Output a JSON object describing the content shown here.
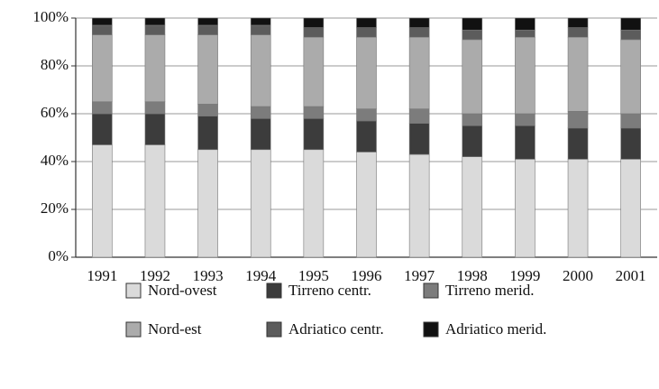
{
  "chart_data": {
    "type": "stacked_bar",
    "categories": [
      "1991",
      "1992",
      "1993",
      "1994",
      "1995",
      "1996",
      "1997",
      "1998",
      "1999",
      "2000",
      "2001"
    ],
    "series": [
      {
        "name": "Nord-ovest",
        "color": "#dadada",
        "values": [
          47,
          47,
          45,
          45,
          45,
          44,
          43,
          42,
          41,
          41,
          41
        ]
      },
      {
        "name": "Tirreno centr.",
        "color": "#3c3c3c",
        "values": [
          13,
          13,
          14,
          13,
          13,
          13,
          13,
          13,
          14,
          13,
          13
        ]
      },
      {
        "name": "Tirreno merid.",
        "color": "#7c7c7c",
        "values": [
          5,
          5,
          5,
          5,
          5,
          5,
          6,
          5,
          5,
          7,
          6
        ]
      },
      {
        "name": "Nord-est",
        "color": "#ababab",
        "values": [
          28,
          28,
          29,
          30,
          29,
          30,
          30,
          31,
          32,
          31,
          31
        ]
      },
      {
        "name": "Adriatico centr.",
        "color": "#5c5c5c",
        "values": [
          4,
          4,
          4,
          4,
          4,
          4,
          4,
          4,
          3,
          4,
          4
        ]
      },
      {
        "name": "Adriatico merid.",
        "color": "#111111",
        "values": [
          3,
          3,
          3,
          3,
          4,
          4,
          4,
          5,
          5,
          4,
          5
        ]
      }
    ],
    "ylim": [
      0,
      100
    ],
    "yticks": [
      {
        "value": 0,
        "label": "0%"
      },
      {
        "value": 20,
        "label": "20%"
      },
      {
        "value": 40,
        "label": "40%"
      },
      {
        "value": 60,
        "label": "60%"
      },
      {
        "value": 80,
        "label": "80%"
      },
      {
        "value": 100,
        "label": "100%"
      }
    ],
    "grid": true
  }
}
